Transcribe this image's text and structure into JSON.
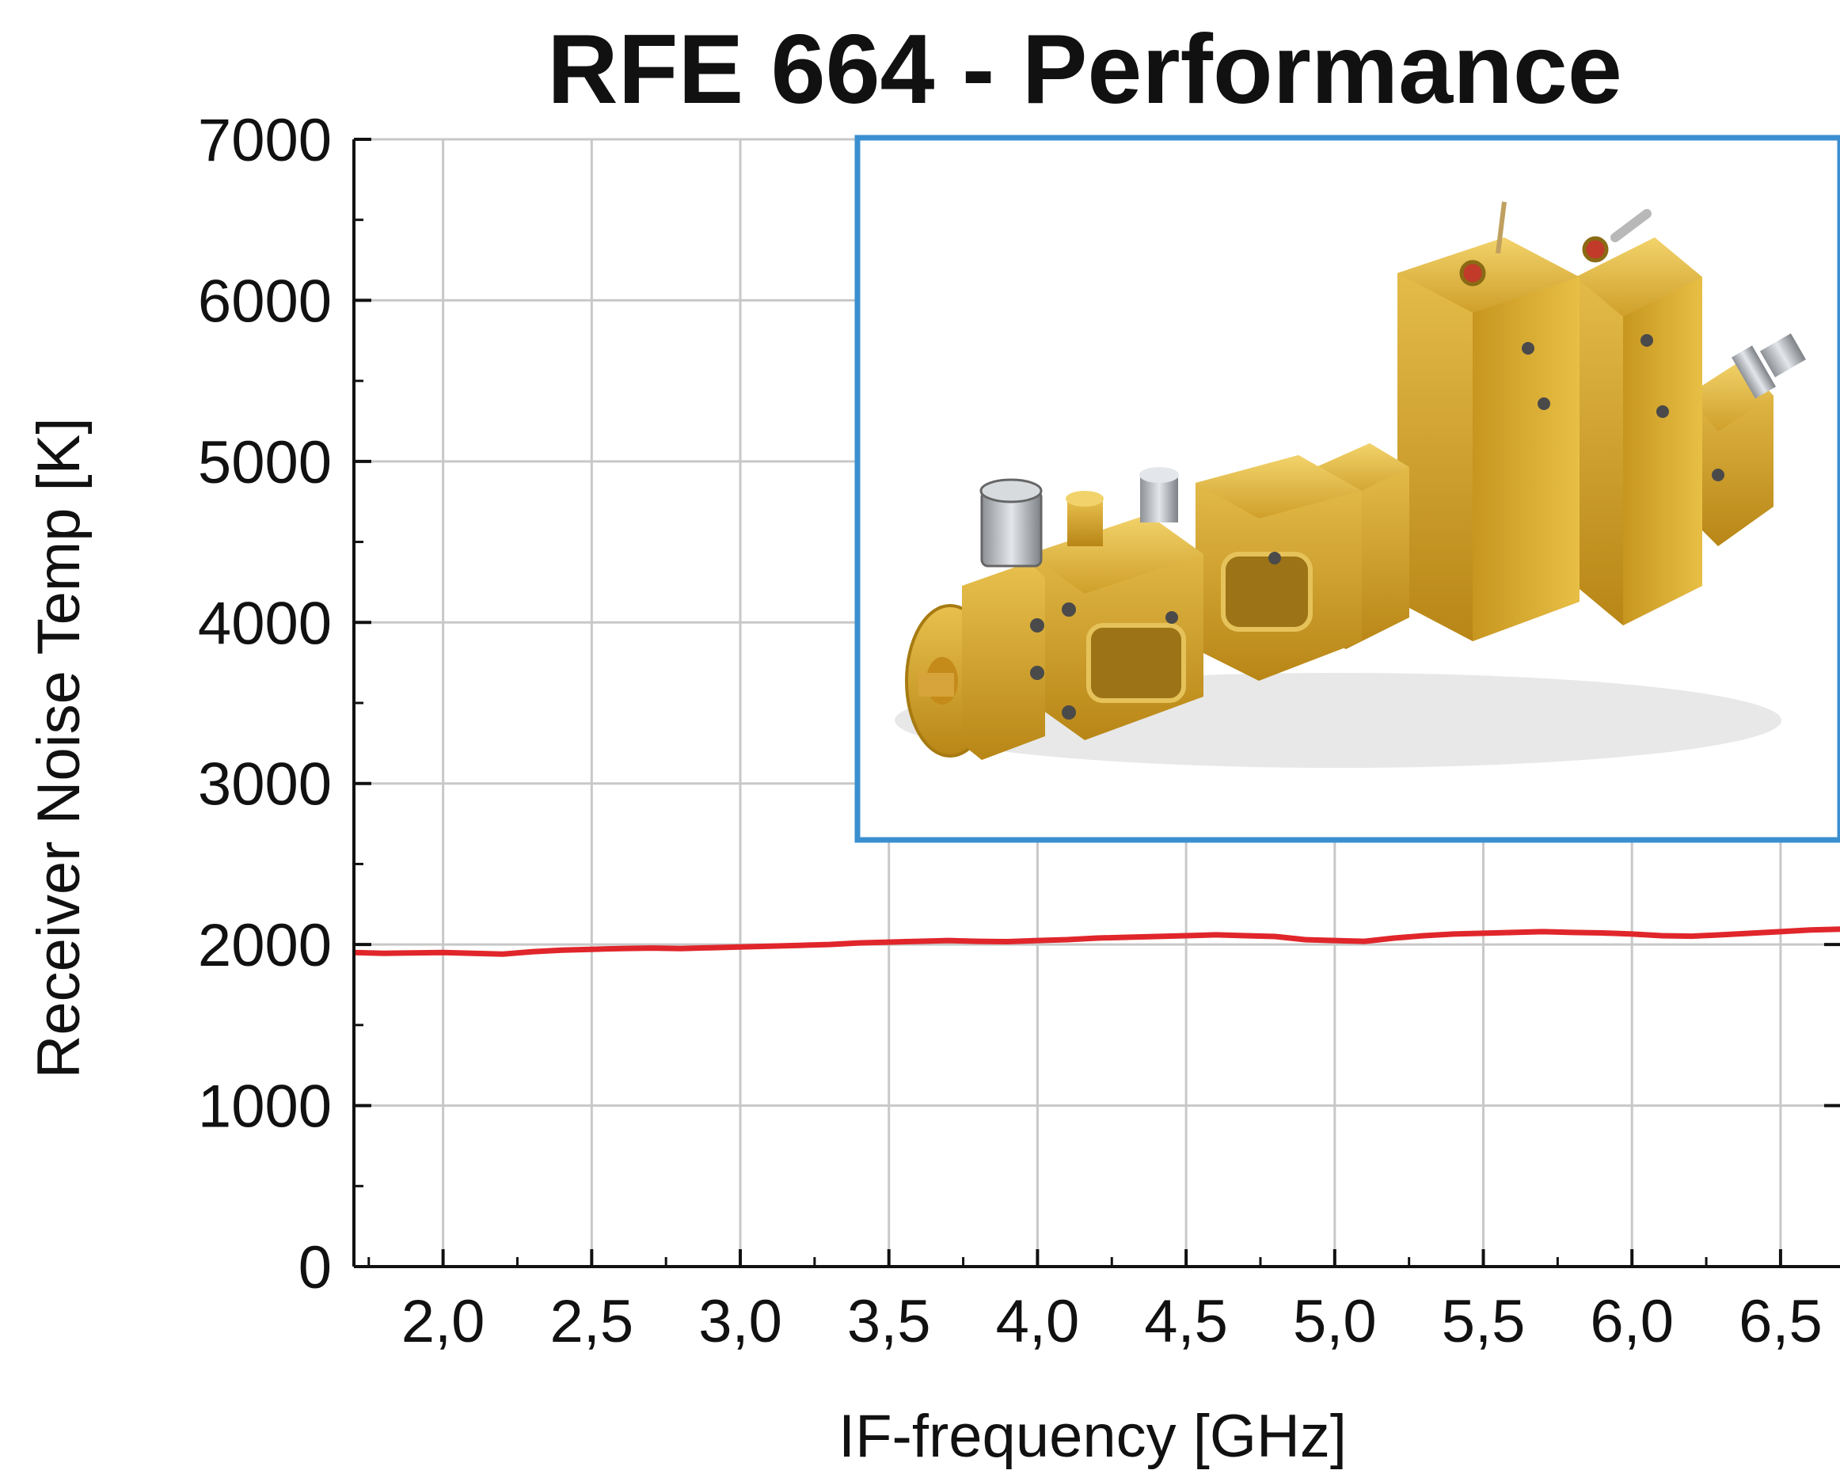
{
  "chart_data": {
    "type": "line",
    "title": "RFE 664 - Performance",
    "xlabel": "IF-frequency [GHz]",
    "ylabel": "Receiver Noise Temp [K]",
    "xlim": [
      1.7,
      6.7
    ],
    "ylim": [
      0,
      7000
    ],
    "xticks": [
      2.0,
      2.5,
      3.0,
      3.5,
      4.0,
      4.5,
      5.0,
      5.5,
      6.0,
      6.5
    ],
    "xtick_labels": [
      "2,0",
      "2,5",
      "3,0",
      "3,5",
      "4,0",
      "4,5",
      "5,0",
      "5,5",
      "6,0",
      "6,5"
    ],
    "yticks": [
      0,
      1000,
      2000,
      3000,
      4000,
      5000,
      6000,
      7000
    ],
    "ytick_labels": [
      "0",
      "1000",
      "2000",
      "3000",
      "4000",
      "5000",
      "6000",
      "7000"
    ],
    "grid": true,
    "colors": {
      "series": "#e0262b",
      "grid": "#c8c8c8",
      "inset_border": "#3a8fd0"
    },
    "series": [
      {
        "x": [
          1.7,
          1.8,
          1.9,
          2.0,
          2.1,
          2.2,
          2.3,
          2.4,
          2.5,
          2.6,
          2.7,
          2.8,
          2.9,
          3.0,
          3.1,
          3.2,
          3.3,
          3.4,
          3.5,
          3.6,
          3.7,
          3.8,
          3.9,
          4.0,
          4.1,
          4.2,
          4.3,
          4.4,
          4.5,
          4.6,
          4.7,
          4.8,
          4.9,
          5.0,
          5.1,
          5.2,
          5.3,
          5.4,
          5.5,
          5.6,
          5.7,
          5.8,
          5.9,
          6.0,
          6.1,
          6.2,
          6.3,
          6.4,
          6.5,
          6.6,
          6.7
        ],
        "y": [
          1950,
          1945,
          1948,
          1950,
          1945,
          1940,
          1955,
          1965,
          1970,
          1975,
          1978,
          1975,
          1980,
          1985,
          1990,
          1995,
          2000,
          2010,
          2015,
          2020,
          2025,
          2020,
          2018,
          2025,
          2030,
          2040,
          2045,
          2050,
          2055,
          2060,
          2055,
          2050,
          2030,
          2025,
          2020,
          2040,
          2055,
          2065,
          2070,
          2075,
          2080,
          2075,
          2072,
          2065,
          2055,
          2052,
          2060,
          2070,
          2080,
          2090,
          2095
        ]
      }
    ],
    "inset": {
      "content": "photo of gold-plated RF front-end module"
    }
  }
}
